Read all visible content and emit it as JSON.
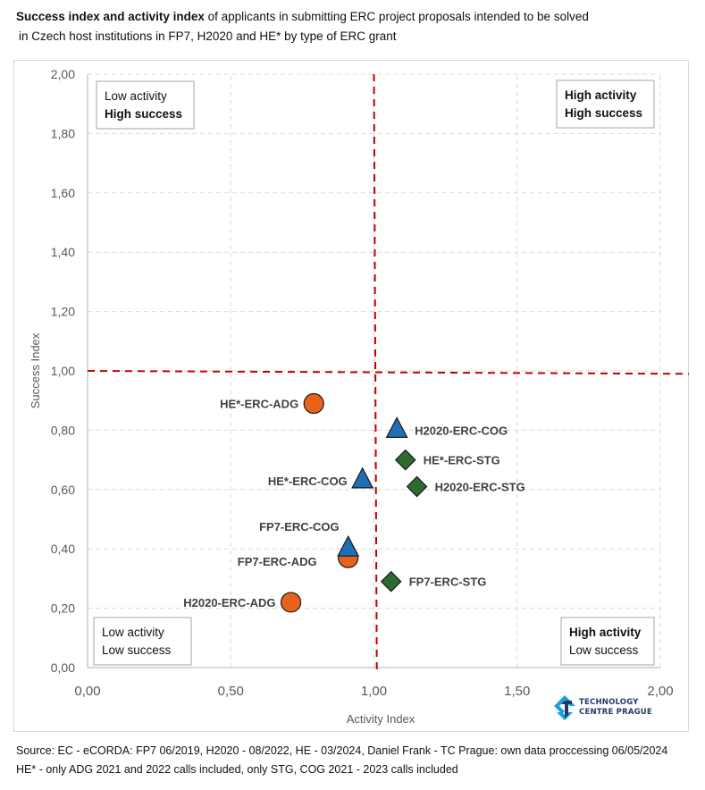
{
  "title": {
    "bold": "Success index and activity index",
    "rest": " of applicants in submitting ERC project proposals intended to be solved",
    "line2": "in Czech host institutions in FP7, H2020 and HE* by type of ERC grant"
  },
  "footer": {
    "line1": "Source: EC - eCORDA: FP7 06/2019, H2020 - 08/2022, HE - 03/2024, Daniel Frank - TC Prague: own data proccessing 06/05/2024",
    "line2": "HE* - only ADG 2021 and 2022 calls included, only STG, COG 2021 - 2023 calls included"
  },
  "logo": {
    "icon": "technology-centre-prague-logo-icon",
    "line1": "TECHNOLOGY",
    "line2": "CENTRE PRAGUE"
  },
  "colors": {
    "ADG": "#e8621b",
    "COG": "#1f6fb8",
    "STG": "#2e6b2f",
    "threshold": "#c00000",
    "grid": "#d9d9d9",
    "logo_light": "#1aa0dc",
    "logo_dark": "#1f3b63"
  },
  "chart_data": {
    "type": "scatter",
    "title": "Success index and activity index of applicants in submitting ERC project proposals intended to be solved in Czech host institutions in FP7, H2020 and HE* by type of ERC grant",
    "xlabel": "Activity Index",
    "ylabel": "Success Index",
    "xlim": [
      0,
      2
    ],
    "ylim": [
      0,
      2
    ],
    "xticks": [
      "0,00",
      "0,50",
      "1,00",
      "1,50",
      "2,00"
    ],
    "xtick_values": [
      0,
      0.5,
      1,
      1.5,
      2
    ],
    "yticks": [
      "0,00",
      "0,20",
      "0,40",
      "0,60",
      "0,80",
      "1,00",
      "1,20",
      "1,40",
      "1,60",
      "1,80",
      "2,00"
    ],
    "ytick_values": [
      0,
      0.2,
      0.4,
      0.6,
      0.8,
      1.0,
      1.2,
      1.4,
      1.6,
      1.8,
      2.0
    ],
    "grid": true,
    "threshold_lines": {
      "vertical": {
        "x_start": 1.0,
        "x_end": 1.01
      },
      "horizontal": {
        "y_start": 1.0,
        "y_end": 0.99
      }
    },
    "quadrant_labels": [
      {
        "position": "top-left",
        "line1": "Low activity",
        "line2": "High success",
        "bold": [
          false,
          true
        ]
      },
      {
        "position": "top-right",
        "line1": "High activity",
        "line2": "High success",
        "bold": [
          true,
          true
        ]
      },
      {
        "position": "bottom-left",
        "line1": "Low activity",
        "line2": "Low success",
        "bold": [
          false,
          false
        ]
      },
      {
        "position": "bottom-right",
        "line1": "High activity",
        "line2": "Low success",
        "bold": [
          true,
          false
        ]
      }
    ],
    "points": [
      {
        "label": "HE*-ERC-ADG",
        "type": "ADG",
        "marker": "circle",
        "x": 0.79,
        "y": 0.89,
        "label_side": "left"
      },
      {
        "label": "H2020-ERC-COG",
        "type": "COG",
        "marker": "triangle",
        "x": 1.08,
        "y": 0.8,
        "label_side": "right"
      },
      {
        "label": "HE*-ERC-STG",
        "type": "STG",
        "marker": "diamond",
        "x": 1.11,
        "y": 0.7,
        "label_side": "right"
      },
      {
        "label": "HE*-ERC-COG",
        "type": "COG",
        "marker": "triangle",
        "x": 0.96,
        "y": 0.63,
        "label_side": "left"
      },
      {
        "label": "H2020-ERC-STG",
        "type": "STG",
        "marker": "diamond",
        "x": 1.15,
        "y": 0.61,
        "label_side": "right"
      },
      {
        "label": "FP7-ERC-ADG",
        "type": "ADG",
        "marker": "circle",
        "x": 0.91,
        "y": 0.37,
        "label_side": "left-below"
      },
      {
        "label": "FP7-ERC-COG",
        "type": "COG",
        "marker": "triangle",
        "x": 0.91,
        "y": 0.4,
        "label_side": "left-above"
      },
      {
        "label": "FP7-ERC-STG",
        "type": "STG",
        "marker": "diamond",
        "x": 1.06,
        "y": 0.29,
        "label_side": "right"
      },
      {
        "label": "H2020-ERC-ADG",
        "type": "ADG",
        "marker": "circle",
        "x": 0.71,
        "y": 0.22,
        "label_side": "left"
      }
    ]
  }
}
